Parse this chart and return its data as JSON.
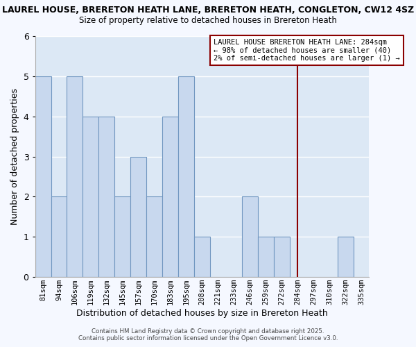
{
  "title1": "LAUREL HOUSE, BRERETON HEATH LANE, BRERETON HEATH, CONGLETON, CW12 4SZ",
  "title2": "Size of property relative to detached houses in Brereton Heath",
  "xlabel": "Distribution of detached houses by size in Brereton Heath",
  "ylabel": "Number of detached properties",
  "bins": [
    "81sqm",
    "94sqm",
    "106sqm",
    "119sqm",
    "132sqm",
    "145sqm",
    "157sqm",
    "170sqm",
    "183sqm",
    "195sqm",
    "208sqm",
    "221sqm",
    "233sqm",
    "246sqm",
    "259sqm",
    "272sqm",
    "284sqm",
    "297sqm",
    "310sqm",
    "322sqm",
    "335sqm"
  ],
  "values": [
    5,
    2,
    5,
    4,
    4,
    2,
    3,
    2,
    4,
    5,
    1,
    0,
    0,
    2,
    1,
    1,
    0,
    0,
    0,
    1,
    0
  ],
  "bar_color": "#c8d8ee",
  "bar_edge_color": "#7096c0",
  "vline_x_index": 16,
  "vline_color": "#8b0000",
  "annotation_text": "LAUREL HOUSE BRERETON HEATH LANE: 284sqm\n← 98% of detached houses are smaller (40)\n2% of semi-detached houses are larger (1) →",
  "annotation_box_color": "#8b0000",
  "ylim": [
    0,
    6
  ],
  "yticks": [
    0,
    1,
    2,
    3,
    4,
    5,
    6
  ],
  "grid_color": "#ffffff",
  "plot_bg_color": "#dce8f5",
  "fig_bg_color": "#f5f8ff",
  "footer1": "Contains HM Land Registry data © Crown copyright and database right 2025.",
  "footer2": "Contains public sector information licensed under the Open Government Licence v3.0."
}
